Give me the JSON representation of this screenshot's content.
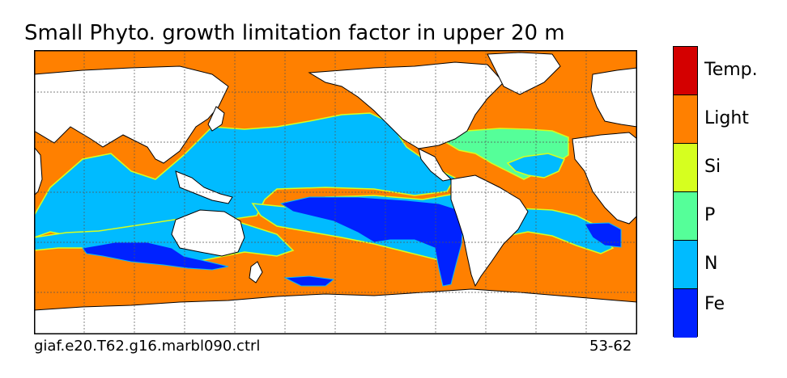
{
  "title": "Small Phyto. growth limitation factor in upper 20 m",
  "caption_left": "giaf.e20.T62.g16.marbl090.ctrl",
  "caption_right": "53-62",
  "legend": [
    {
      "label": "Temp.",
      "color": "#d40000"
    },
    {
      "label": "Light",
      "color": "#ff8000"
    },
    {
      "label": "Si",
      "color": "#d6ff1f"
    },
    {
      "label": "P",
      "color": "#55ff99"
    },
    {
      "label": "N",
      "color": "#00bbff"
    },
    {
      "label": "Fe",
      "color": "#0022ff"
    }
  ],
  "map": {
    "ocean_default_color": "#ff8000",
    "land_color": "#ffffff",
    "coastline_color": "#000000",
    "gridlines": true
  }
}
